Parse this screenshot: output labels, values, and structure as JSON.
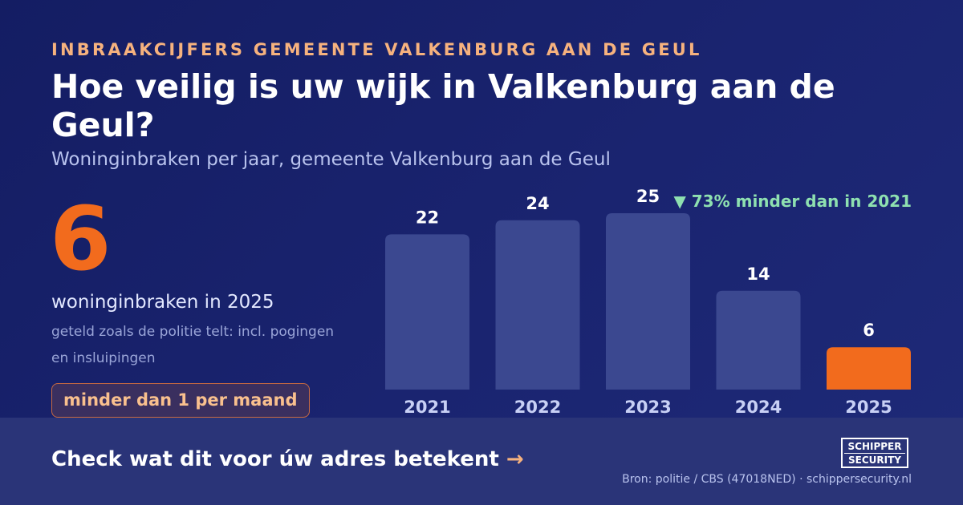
{
  "header": {
    "eyebrow": "INBRAAKCIJFERS GEMEENTE VALKENBURG AAN DE GEUL",
    "title": "Hoe veilig is uw wijk in Valkenburg aan de Geul?",
    "subtitle": "Woninginbraken per jaar, gemeente Valkenburg aan de Geul"
  },
  "highlight": {
    "number": "6",
    "label": "woninginbraken in 2025",
    "note": "geteld zoals de politie telt: incl. pogingen en insluipingen",
    "pill": "minder dan 1 per maand"
  },
  "chart_data": {
    "type": "bar",
    "categories": [
      "2021",
      "2022",
      "2023",
      "2024",
      "2025"
    ],
    "values": [
      22,
      24,
      25,
      14,
      6
    ],
    "annotation": "▼ 73% minder dan in 2021",
    "ylim": [
      0,
      25
    ],
    "grid": false,
    "colors": {
      "bar": "#3b4890",
      "highlight": "#f26b1d",
      "annotation": "#8ee0b0",
      "label": "#ffffff",
      "tick": "#c8d0f5"
    }
  },
  "footer": {
    "cta_text": "Check wat dit voor úw adres betekent",
    "cta_arrow": "→",
    "logo_line1": "SCHIPPER",
    "logo_line2": "SECURITY",
    "source": "Bron: politie / CBS (47018NED) · schippersecurity.nl"
  }
}
